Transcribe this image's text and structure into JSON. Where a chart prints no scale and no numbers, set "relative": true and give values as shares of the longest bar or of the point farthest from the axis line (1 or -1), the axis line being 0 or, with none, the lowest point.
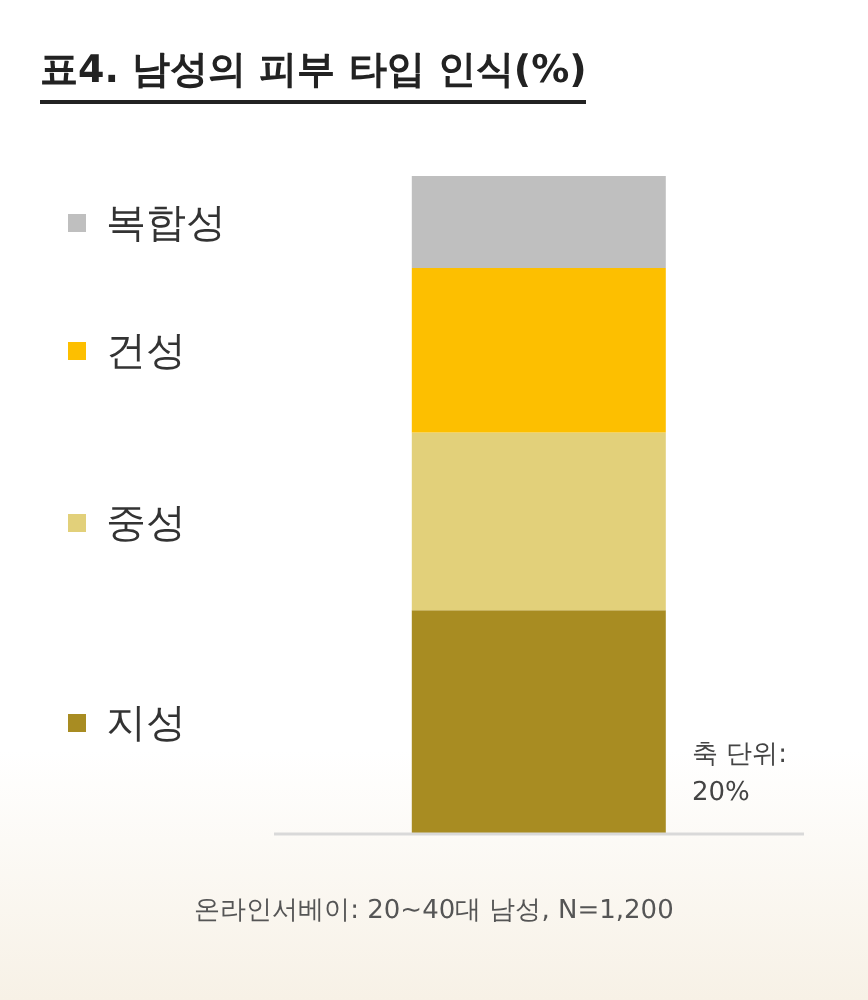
{
  "chart_data": {
    "type": "bar",
    "title": "표4. 남성의 피부 타입 인식(%)",
    "stacked": true,
    "relative": true,
    "categories": [
      null
    ],
    "series": [
      {
        "name": "지성",
        "color": "#a88c22",
        "values": [
          0.34
        ]
      },
      {
        "name": "중성",
        "color": "#e2d07a",
        "values": [
          0.27
        ]
      },
      {
        "name": "건성",
        "color": "#fdbf00",
        "values": [
          0.25
        ]
      },
      {
        "name": "복합성",
        "color": "#bfbfbf",
        "values": [
          0.14
        ]
      }
    ],
    "legend": "left",
    "annotations": [
      "축 단위: 20%",
      "온라인서베이: 20~40대 남성, N=1,200"
    ]
  }
}
